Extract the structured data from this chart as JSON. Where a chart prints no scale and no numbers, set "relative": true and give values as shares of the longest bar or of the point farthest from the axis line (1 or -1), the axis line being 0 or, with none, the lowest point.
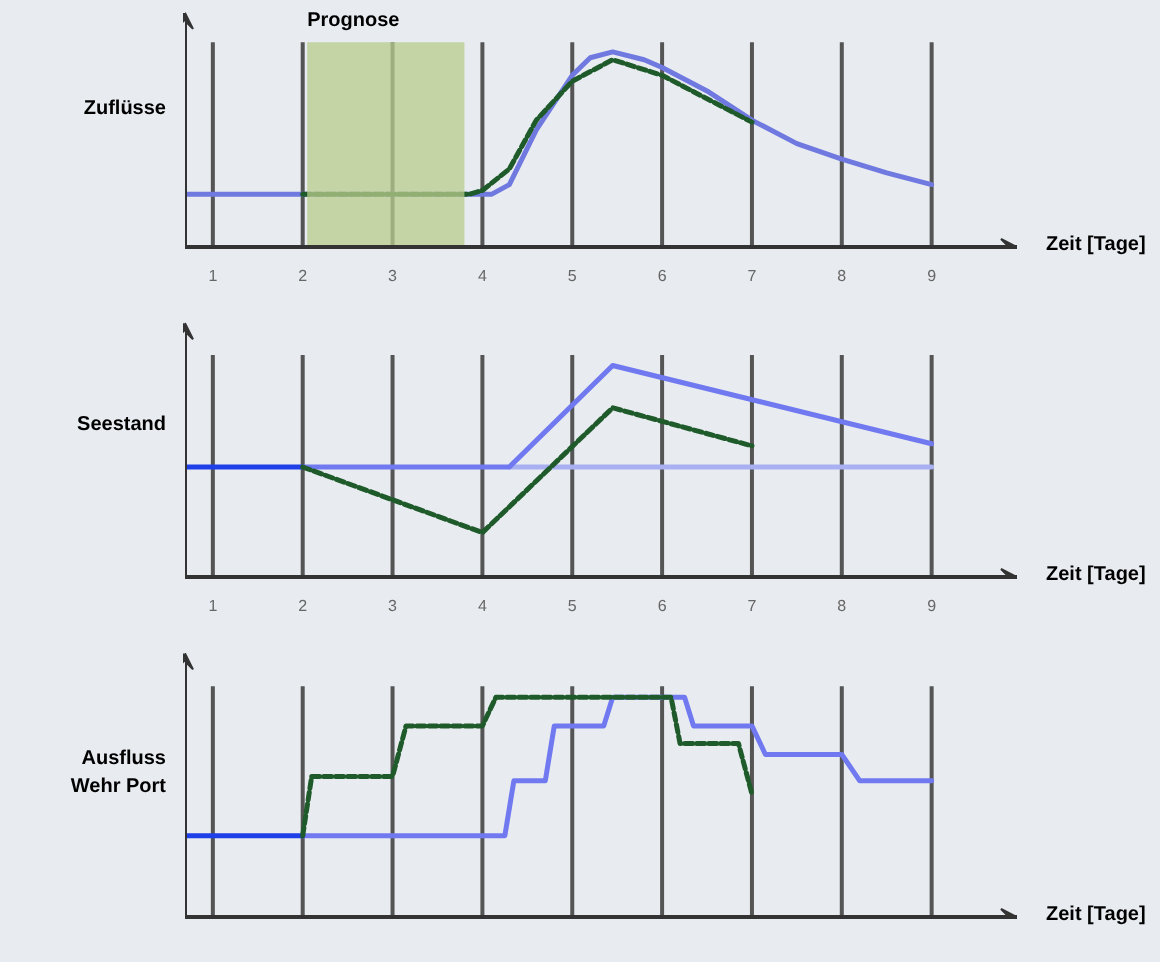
{
  "chart_data": [
    {
      "type": "line",
      "relative": true,
      "ylabel": "Zuflüsse",
      "xlabel": "Zeit [Tage]",
      "xlim": [
        0.69,
        9.95
      ],
      "xticks": [
        1,
        2,
        3,
        4,
        5,
        6,
        7,
        8,
        9
      ],
      "grid": "x",
      "bands": [
        {
          "axis": "x",
          "from": 2.05,
          "to": 3.8,
          "label": "Prognose",
          "color": "#b8cc8c"
        }
      ],
      "series": [
        {
          "color": "#7079e0",
          "line_style": "solid",
          "x": [
            0.69,
            4.1,
            4.3,
            4.6,
            5.0,
            5.2,
            5.45,
            5.8,
            6.0,
            6.5,
            7.0,
            7.5,
            8.0,
            8.5,
            9.0
          ],
          "values": [
            0.27,
            0.27,
            0.32,
            0.6,
            0.88,
            0.97,
            1.0,
            0.96,
            0.92,
            0.8,
            0.65,
            0.53,
            0.45,
            0.38,
            0.32
          ]
        },
        {
          "color": "#1e5a2a",
          "line_style": "dashed",
          "x": [
            2.0,
            3.85,
            4.0,
            4.3,
            4.6,
            5.0,
            5.45,
            6.0,
            6.5,
            7.0
          ],
          "values": [
            0.27,
            0.27,
            0.29,
            0.4,
            0.65,
            0.85,
            0.96,
            0.88,
            0.76,
            0.64
          ]
        }
      ]
    },
    {
      "type": "line",
      "relative": true,
      "ylabel": "Seestand",
      "xlabel": "Zeit [Tage]",
      "xlim": [
        0.69,
        9.95
      ],
      "xticks": [
        1,
        2,
        3,
        4,
        5,
        6,
        7,
        8,
        9
      ],
      "grid": "x",
      "series": [
        {
          "color": "#a8b0f2",
          "line_style": "solid",
          "x": [
            4.3,
            9.0
          ],
          "values": [
            0.52,
            0.52
          ]
        },
        {
          "color": "#7079f0",
          "line_style": "solid",
          "x": [
            2.0,
            4.3,
            5.45,
            9.0
          ],
          "values": [
            0.52,
            0.52,
            1.0,
            0.63
          ]
        },
        {
          "color": "#1f3fe8",
          "line_style": "solid",
          "x": [
            0.69,
            2.0
          ],
          "values": [
            0.52,
            0.52
          ]
        },
        {
          "color": "#1e5a2a",
          "line_style": "dashed",
          "x": [
            2.0,
            4.0,
            5.45,
            7.0
          ],
          "values": [
            0.52,
            0.21,
            0.8,
            0.62
          ]
        }
      ]
    },
    {
      "type": "line",
      "relative": true,
      "ylabel": "Ausfluss\nWehr Port",
      "xlabel": "Zeit [Tage]",
      "xlim": [
        0.69,
        9.95
      ],
      "xticks": [
        1,
        2,
        3,
        4,
        5,
        6,
        7,
        8,
        9
      ],
      "grid": "x",
      "tick_labels": false,
      "series": [
        {
          "color": "#7079f0",
          "line_style": "solid",
          "x": [
            2.0,
            4.25,
            4.35,
            4.7,
            4.8,
            5.35,
            5.45,
            6.25,
            6.35,
            7.0,
            7.15,
            8.0,
            8.2,
            9.0
          ],
          "values": [
            0.37,
            0.37,
            0.62,
            0.62,
            0.87,
            0.87,
            1.0,
            1.0,
            0.87,
            0.87,
            0.74,
            0.74,
            0.62,
            0.62
          ]
        },
        {
          "color": "#1f3fe8",
          "line_style": "solid",
          "x": [
            0.69,
            2.0
          ],
          "values": [
            0.37,
            0.37
          ]
        },
        {
          "color": "#1e5a2a",
          "line_style": "dashed",
          "x": [
            2.0,
            2.1,
            3.0,
            3.15,
            4.0,
            4.15,
            6.1,
            6.2,
            6.85,
            7.0
          ],
          "values": [
            0.37,
            0.64,
            0.64,
            0.87,
            0.87,
            1.0,
            1.0,
            0.79,
            0.79,
            0.56
          ]
        }
      ]
    }
  ]
}
